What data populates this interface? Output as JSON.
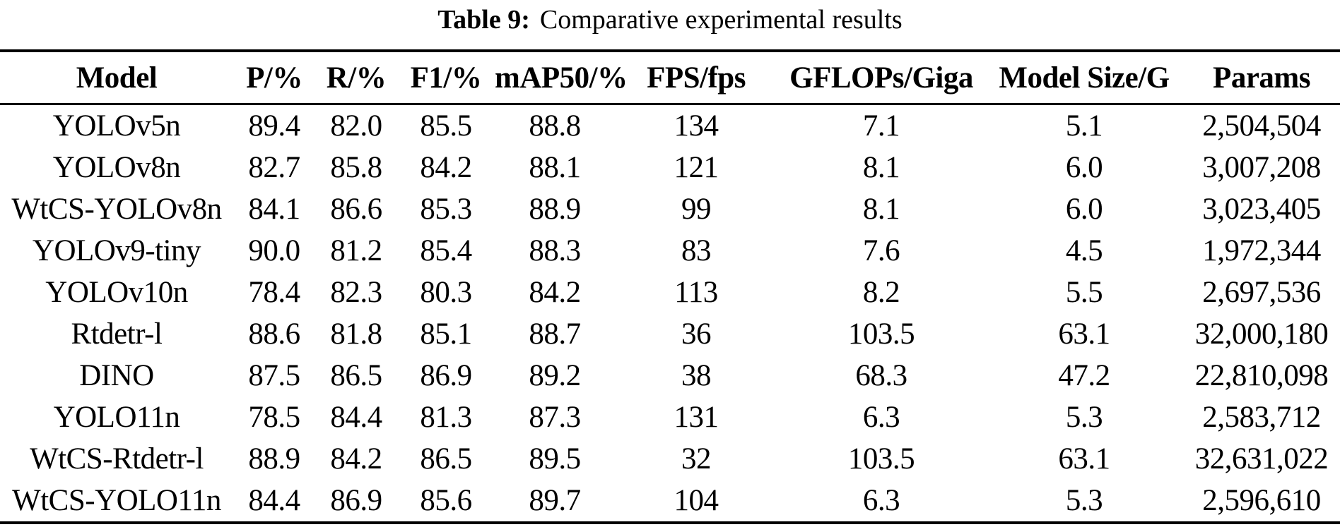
{
  "caption": {
    "label": "Table 9:",
    "text": "Comparative experimental results"
  },
  "table": {
    "headers": [
      "Model",
      "P/%",
      "R/%",
      "F1/%",
      "mAP50/%",
      "FPS/fps",
      "GFLOPs/Giga",
      "Model Size/G",
      "Params"
    ],
    "rows": [
      [
        "YOLOv5n",
        "89.4",
        "82.0",
        "85.5",
        "88.8",
        "134",
        "7.1",
        "5.1",
        "2,504,504"
      ],
      [
        "YOLOv8n",
        "82.7",
        "85.8",
        "84.2",
        "88.1",
        "121",
        "8.1",
        "6.0",
        "3,007,208"
      ],
      [
        "WtCS-YOLOv8n",
        "84.1",
        "86.6",
        "85.3",
        "88.9",
        "99",
        "8.1",
        "6.0",
        "3,023,405"
      ],
      [
        "YOLOv9-tiny",
        "90.0",
        "81.2",
        "85.4",
        "88.3",
        "83",
        "7.6",
        "4.5",
        "1,972,344"
      ],
      [
        "YOLOv10n",
        "78.4",
        "82.3",
        "80.3",
        "84.2",
        "113",
        "8.2",
        "5.5",
        "2,697,536"
      ],
      [
        "Rtdetr-l",
        "88.6",
        "81.8",
        "85.1",
        "88.7",
        "36",
        "103.5",
        "63.1",
        "32,000,180"
      ],
      [
        "DINO",
        "87.5",
        "86.5",
        "86.9",
        "89.2",
        "38",
        "68.3",
        "47.2",
        "22,810,098"
      ],
      [
        "YOLO11n",
        "78.5",
        "84.4",
        "81.3",
        "87.3",
        "131",
        "6.3",
        "5.3",
        "2,583,712"
      ],
      [
        "WtCS-Rtdetr-l",
        "88.9",
        "84.2",
        "86.5",
        "89.5",
        "32",
        "103.5",
        "63.1",
        "32,631,022"
      ],
      [
        "WtCS-YOLO11n",
        "84.4",
        "86.9",
        "85.6",
        "89.7",
        "104",
        "6.3",
        "5.3",
        "2,596,610"
      ]
    ]
  },
  "chart_data": {
    "type": "table",
    "title": "Table 9: Comparative experimental results",
    "columns": [
      "Model",
      "P/%",
      "R/%",
      "F1/%",
      "mAP50/%",
      "FPS/fps",
      "GFLOPs/Giga",
      "Model Size/G",
      "Params"
    ],
    "rows": [
      [
        "YOLOv5n",
        89.4,
        82.0,
        85.5,
        88.8,
        134,
        7.1,
        5.1,
        2504504
      ],
      [
        "YOLOv8n",
        82.7,
        85.8,
        84.2,
        88.1,
        121,
        8.1,
        6.0,
        3007208
      ],
      [
        "WtCS-YOLOv8n",
        84.1,
        86.6,
        85.3,
        88.9,
        99,
        8.1,
        6.0,
        3023405
      ],
      [
        "YOLOv9-tiny",
        90.0,
        81.2,
        85.4,
        88.3,
        83,
        7.6,
        4.5,
        1972344
      ],
      [
        "YOLOv10n",
        78.4,
        82.3,
        80.3,
        84.2,
        113,
        8.2,
        5.5,
        2697536
      ],
      [
        "Rtdetr-l",
        88.6,
        81.8,
        85.1,
        88.7,
        36,
        103.5,
        63.1,
        32000180
      ],
      [
        "DINO",
        87.5,
        86.5,
        86.9,
        89.2,
        38,
        68.3,
        47.2,
        22810098
      ],
      [
        "YOLO11n",
        78.5,
        84.4,
        81.3,
        87.3,
        131,
        6.3,
        5.3,
        2583712
      ],
      [
        "WtCS-Rtdetr-l",
        88.9,
        84.2,
        86.5,
        89.5,
        32,
        103.5,
        63.1,
        32631022
      ],
      [
        "WtCS-YOLO11n",
        84.4,
        86.9,
        85.6,
        89.7,
        104,
        6.3,
        5.3,
        2596610
      ]
    ]
  },
  "colors": {
    "text": "#000000",
    "background": "#ffffff",
    "rule": "#000000"
  }
}
